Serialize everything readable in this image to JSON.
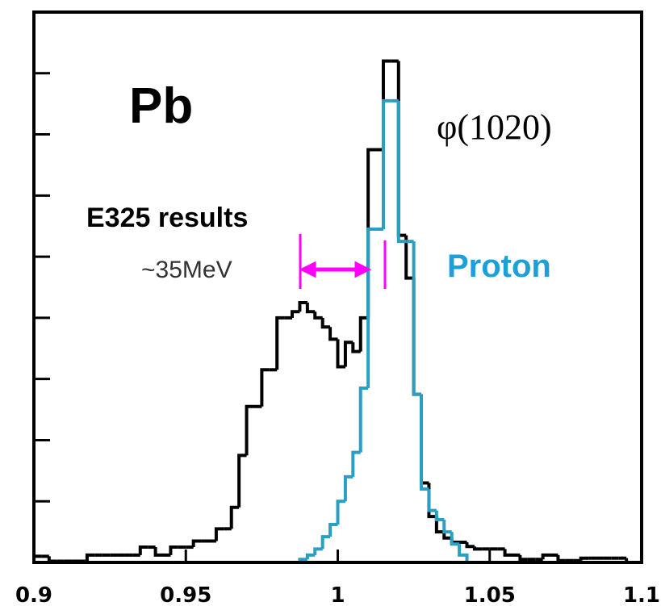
{
  "chart_data": {
    "type": "histogram",
    "bins": [
      0.9,
      0.9025,
      0.905,
      0.9075,
      0.91,
      0.9125,
      0.915,
      0.9175,
      0.92,
      0.9225,
      0.925,
      0.9275,
      0.93,
      0.9325,
      0.935,
      0.9375,
      0.94,
      0.9425,
      0.945,
      0.9475,
      0.95,
      0.9525,
      0.955,
      0.9575,
      0.96,
      0.9625,
      0.965,
      0.9675,
      0.97,
      0.9725,
      0.975,
      0.9775,
      0.98,
      0.9825,
      0.985,
      0.9875,
      0.99,
      0.9925,
      0.995,
      0.9975,
      1.0,
      1.0025,
      1.005,
      1.0075,
      1.01,
      1.0125,
      1.015,
      1.0175,
      1.02,
      1.0225,
      1.025,
      1.0275,
      1.03,
      1.0325,
      1.035,
      1.0375,
      1.04,
      1.0425,
      1.045,
      1.0475,
      1.05,
      1.0525,
      1.055,
      1.0575,
      1.06,
      1.0625,
      1.065,
      1.0675,
      1.07,
      1.0725,
      1.075,
      1.0775,
      1.08,
      1.0825,
      1.085,
      1.0875,
      1.09,
      1.0925,
      1.095,
      1.0975,
      1.1
    ],
    "series": [
      {
        "name": "Pb",
        "color": "#000000",
        "values": [
          0.1,
          0.1,
          0.02,
          0.02,
          0.02,
          0.02,
          0.02,
          0.12,
          0.12,
          0.12,
          0.12,
          0.12,
          0.12,
          0.12,
          0.25,
          0.25,
          0.12,
          0.12,
          0.25,
          0.25,
          0.25,
          0.35,
          0.35,
          0.35,
          0.55,
          0.55,
          0.9,
          1.75,
          2.55,
          2.55,
          3.15,
          3.15,
          4.0,
          4.0,
          4.1,
          4.25,
          4.1,
          4.0,
          3.85,
          3.65,
          3.2,
          3.6,
          3.45,
          4.0,
          6.75,
          6.75,
          8.2,
          8.2,
          5.35,
          4.65,
          2.75,
          1.3,
          0.75,
          0.5,
          0.4,
          0.33,
          0.33,
          0.26,
          0.22,
          0.22,
          0.22,
          0.22,
          0.12,
          0.12,
          0.05,
          0.05,
          0.05,
          0.12,
          0.12,
          0.03,
          0.03,
          0.03,
          0.07,
          0.07,
          0.07,
          0.07,
          0.07,
          0.07,
          0,
          0
        ]
      },
      {
        "name": "Proton",
        "color": "#2a9fc4",
        "values": [
          null,
          null,
          null,
          null,
          null,
          null,
          null,
          null,
          null,
          null,
          null,
          null,
          null,
          null,
          null,
          null,
          null,
          null,
          null,
          null,
          null,
          null,
          null,
          null,
          null,
          null,
          null,
          null,
          null,
          null,
          null,
          null,
          null,
          null,
          null,
          0.05,
          0.12,
          0.22,
          0.42,
          0.62,
          1.0,
          1.4,
          1.8,
          2.85,
          5.45,
          5.45,
          7.55,
          7.55,
          5.25,
          5.25,
          2.75,
          1.2,
          0.85,
          0.7,
          0.5,
          0.3,
          0.12,
          null,
          null,
          null,
          null,
          null,
          null,
          null,
          null,
          null,
          null,
          null,
          null,
          null,
          null,
          null,
          null,
          null,
          null,
          null,
          null,
          null,
          null,
          null
        ]
      }
    ],
    "annotations": [
      "φ(1020)",
      "E325 results",
      "~35MeV"
    ],
    "xlim": [
      0.9,
      1.1
    ],
    "xticks": [
      0.9,
      0.95,
      1,
      1.05,
      1.1
    ],
    "ylim": [
      0,
      9
    ],
    "yticks": [
      0,
      1,
      2,
      3,
      4,
      5,
      6,
      7,
      8,
      9
    ]
  }
}
